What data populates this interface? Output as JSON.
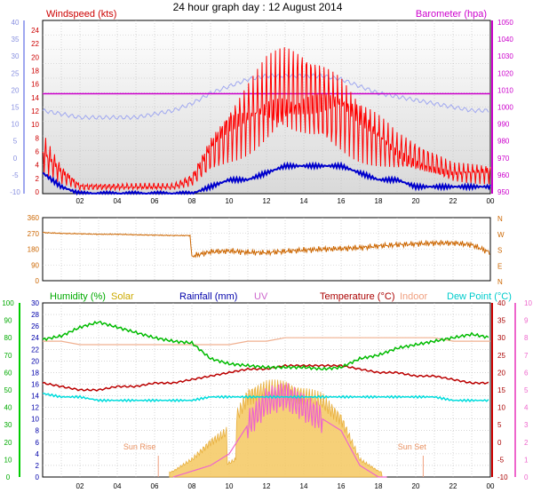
{
  "page_title": "24 hour graph day : 12 August 2014",
  "chart_data": [
    {
      "type": "line",
      "panel": "wind-pressure",
      "left_axis_label": "Windspeed (kts)",
      "right_axis_label": "Barometer (hpa)",
      "left_ticks": [
        "24",
        "22",
        "20",
        "18",
        "16",
        "14",
        "12",
        "10",
        "8",
        "6",
        "4",
        "2",
        "0"
      ],
      "outer_left_ticks": [
        "40",
        "35",
        "30",
        "25",
        "20",
        "15",
        "10",
        "5",
        "0",
        "-5",
        "-10"
      ],
      "right_ticks": [
        "1050",
        "1040",
        "1030",
        "1020",
        "1010",
        "1000",
        "990",
        "980",
        "970",
        "960",
        "950"
      ],
      "x_ticks": [
        "02",
        "04",
        "06",
        "08",
        "10",
        "12",
        "14",
        "16",
        "18",
        "20",
        "22",
        "00"
      ],
      "ylim_wind": [
        0,
        25
      ],
      "ylim_barometer": [
        948,
        1052
      ],
      "x": [
        0,
        1,
        2,
        3,
        4,
        5,
        6,
        7,
        8,
        9,
        10,
        11,
        12,
        13,
        14,
        15,
        16,
        17,
        18,
        19,
        20,
        21,
        22,
        23,
        24
      ],
      "series": [
        {
          "name": "Windspeed (kts)",
          "color": "#ff0000",
          "gust_values": [
            6,
            3,
            1,
            1,
            1,
            1,
            1,
            1,
            2,
            6,
            9,
            11,
            13,
            14,
            14,
            13,
            12,
            10,
            8,
            6,
            5,
            4,
            3,
            3,
            3
          ],
          "avg_values": [
            3,
            1,
            0,
            0,
            0,
            0,
            0,
            0,
            0,
            1,
            2,
            2,
            3,
            4,
            4,
            4,
            4,
            3,
            2,
            2,
            1,
            1,
            1,
            1,
            1
          ]
        },
        {
          "name": "Barometer (hpa)",
          "color": "#cc00cc",
          "values": [
            1008,
            1008,
            1008,
            1008,
            1008,
            1008,
            1008,
            1008,
            1008,
            1008,
            1008,
            1008,
            1008,
            1008,
            1008,
            1008,
            1008,
            1008,
            1008,
            1008,
            1008,
            1008,
            1008,
            1008,
            1008
          ]
        },
        {
          "name": "Outer scale trace",
          "color": "#a0a8f0",
          "values": [
            14,
            13,
            12,
            12,
            12,
            12,
            13,
            14,
            16,
            19,
            21,
            23,
            24,
            24,
            24,
            24,
            23,
            21,
            19,
            18,
            17,
            16,
            15,
            14,
            14
          ]
        }
      ]
    },
    {
      "type": "line",
      "panel": "wind-direction",
      "left_ticks": [
        "360",
        "270",
        "180",
        "90",
        "0"
      ],
      "right_ticks": [
        "N",
        "W",
        "S",
        "E",
        "N"
      ],
      "ylim": [
        0,
        360
      ],
      "x": [
        0,
        1,
        2,
        3,
        4,
        5,
        6,
        7,
        7.9,
        8,
        9,
        10,
        11,
        12,
        13,
        14,
        15,
        16,
        17,
        18,
        19,
        20,
        21,
        22,
        23,
        24
      ],
      "series": [
        {
          "name": "Wind direction",
          "color": "#cc6600",
          "values": [
            275,
            270,
            268,
            265,
            265,
            262,
            260,
            258,
            258,
            140,
            165,
            170,
            162,
            160,
            168,
            175,
            180,
            183,
            188,
            198,
            205,
            210,
            215,
            215,
            205,
            160
          ]
        }
      ]
    },
    {
      "type": "area",
      "panel": "humidity-temperature",
      "legend": [
        "Humidity (%)",
        "Solar",
        "Rainfall (mm)",
        "UV",
        "Temperature (°C)",
        "Indoor",
        "Dew Point (°C)"
      ],
      "outer_left_ticks": [
        "100",
        "90",
        "80",
        "70",
        "60",
        "50",
        "40",
        "30",
        "20",
        "10",
        "0"
      ],
      "left_ticks": [
        "30",
        "28",
        "26",
        "24",
        "22",
        "20",
        "18",
        "16",
        "14",
        "12",
        "10",
        "8",
        "6",
        "4",
        "2",
        "0"
      ],
      "right_ticks": [
        "40",
        "35",
        "30",
        "25",
        "20",
        "15",
        "10",
        "5",
        "0",
        "-5",
        "-10"
      ],
      "outer_right_ticks": [
        "10",
        "9",
        "8",
        "7",
        "6",
        "5",
        "4",
        "3",
        "2",
        "1",
        "0"
      ],
      "x_ticks": [
        "02",
        "04",
        "06",
        "08",
        "10",
        "12",
        "14",
        "16",
        "18",
        "20",
        "22",
        "00"
      ],
      "annotations": [
        "Sun Rise",
        "Sun Set"
      ],
      "x": [
        0,
        1,
        2,
        3,
        4,
        5,
        6,
        7,
        8,
        9,
        10,
        11,
        12,
        13,
        14,
        15,
        16,
        17,
        18,
        19,
        20,
        21,
        22,
        23,
        24
      ],
      "series": [
        {
          "name": "Humidity (%)",
          "color": "#00bb00",
          "values": [
            79,
            81,
            86,
            89,
            86,
            83,
            80,
            78,
            77,
            68,
            65,
            64,
            63,
            63,
            63,
            62,
            63,
            68,
            70,
            74,
            76,
            78,
            80,
            82,
            80
          ]
        },
        {
          "name": "Temperature (°C)",
          "color": "#bb0000",
          "values": [
            17,
            16,
            15,
            15,
            16,
            16,
            17,
            17,
            18,
            19,
            20,
            21,
            21,
            22,
            22,
            22,
            22,
            21,
            20,
            20,
            19,
            19,
            18,
            17,
            17
          ]
        },
        {
          "name": "Indoor",
          "color": "#f0b090",
          "values": [
            29,
            29,
            28,
            28,
            28,
            28,
            28,
            28,
            28,
            28,
            28,
            29,
            29,
            30,
            30,
            30,
            30,
            30,
            30,
            30,
            30,
            30,
            29,
            29,
            29
          ]
        },
        {
          "name": "Dew Point (°C)",
          "color": "#00dddd",
          "values": [
            14,
            13,
            13,
            12,
            12,
            12,
            12,
            12,
            12,
            13,
            13,
            13,
            13,
            13,
            13,
            13,
            13,
            13,
            13,
            13,
            13,
            13,
            12,
            12,
            12
          ]
        },
        {
          "name": "Solar",
          "color": "#f5c860",
          "values": [
            0,
            0,
            0,
            0,
            0,
            0,
            0,
            1,
            3,
            6,
            8,
            14,
            15,
            15,
            14,
            13,
            10,
            3,
            1,
            0,
            0,
            0,
            0,
            0,
            0
          ]
        },
        {
          "name": "UV",
          "color": "#ee66cc",
          "values": [
            0,
            0,
            0,
            0,
            0,
            0,
            0,
            0,
            1,
            2,
            4,
            9,
            13,
            14,
            12,
            10,
            8,
            2,
            0,
            0,
            0,
            0,
            0,
            0,
            0
          ]
        }
      ]
    }
  ]
}
